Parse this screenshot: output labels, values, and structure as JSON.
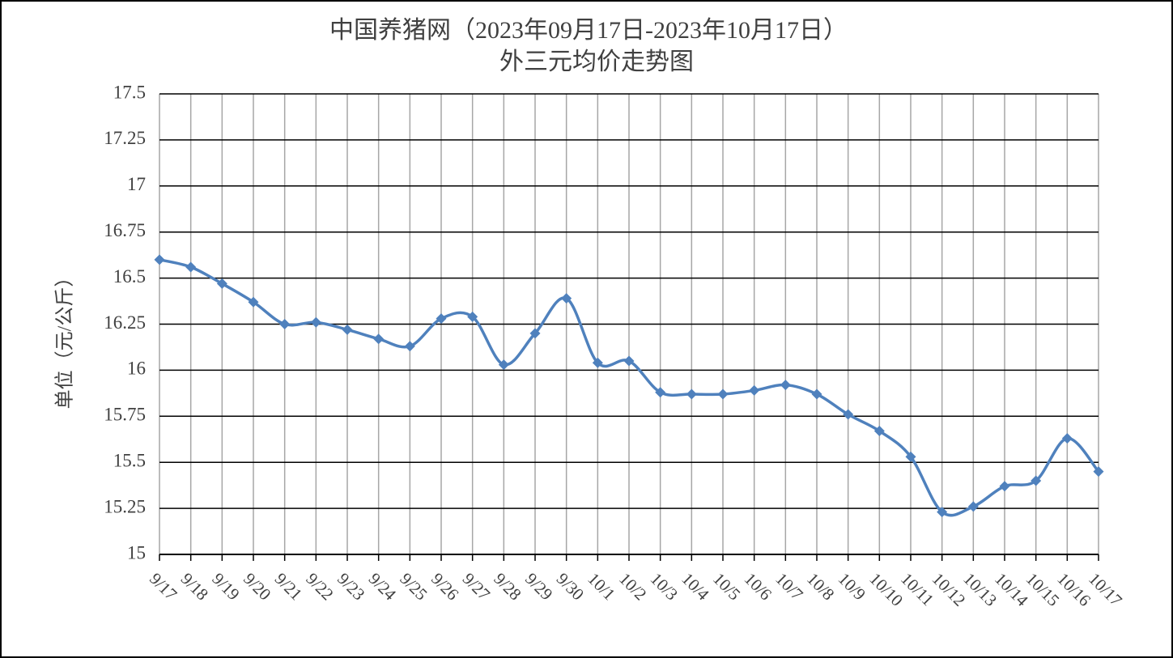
{
  "chart_data": {
    "type": "line",
    "title": "中国养猪网（2023年09月17日-2023年10月17日）",
    "subtitle": "外三元均价走势图",
    "y_label": "单位（元/公斤）",
    "categories": [
      "9/17",
      "9/18",
      "9/19",
      "9/20",
      "9/21",
      "9/22",
      "9/23",
      "9/24",
      "9/25",
      "9/26",
      "9/27",
      "9/28",
      "9/29",
      "9/30",
      "10/1",
      "10/2",
      "10/3",
      "10/4",
      "10/5",
      "10/6",
      "10/7",
      "10/8",
      "10/9",
      "10/10",
      "10/11",
      "10/12",
      "10/13",
      "10/14",
      "10/15",
      "10/16",
      "10/17"
    ],
    "values": [
      16.6,
      16.56,
      16.47,
      16.37,
      16.25,
      16.26,
      16.22,
      16.17,
      16.13,
      16.28,
      16.29,
      16.03,
      16.2,
      16.39,
      16.04,
      16.05,
      15.88,
      15.87,
      15.87,
      15.89,
      15.92,
      15.87,
      15.76,
      15.67,
      15.53,
      15.23,
      15.26,
      15.37,
      15.4,
      15.63,
      15.45
    ],
    "color": "#4f81bd",
    "ylim": [
      15,
      17.5
    ],
    "yticks": [
      15,
      15.25,
      15.5,
      15.75,
      16,
      16.25,
      16.5,
      16.75,
      17,
      17.25,
      17.5
    ],
    "grid": true,
    "smooth": true
  }
}
